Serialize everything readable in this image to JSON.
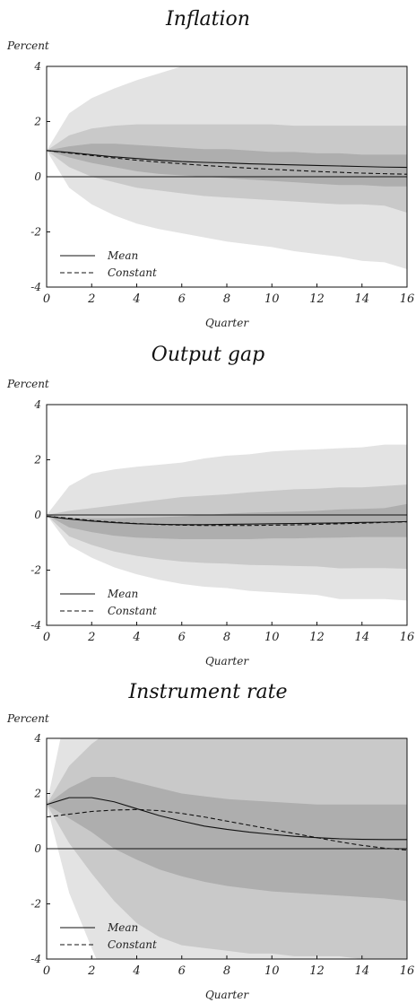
{
  "chart_data": [
    {
      "type": "area",
      "title": "Inflation",
      "ylabel": "Percent",
      "xlabel": "Quarter",
      "x": [
        0,
        1,
        2,
        3,
        4,
        5,
        6,
        7,
        8,
        9,
        10,
        11,
        12,
        13,
        14,
        15,
        16
      ],
      "xticks": [
        0,
        2,
        4,
        6,
        8,
        10,
        12,
        14,
        16
      ],
      "yticks": [
        4,
        2,
        0,
        -2,
        -4
      ],
      "xlim": [
        0,
        16
      ],
      "ylim": [
        -4,
        4
      ],
      "bands": [
        {
          "level": "outer",
          "color": "#e3e3e3",
          "upper": [
            0.95,
            2.3,
            2.85,
            3.2,
            3.5,
            3.75,
            4.0,
            4.0,
            4.0,
            4.0,
            4.0,
            4.0,
            4.0,
            4.0,
            4.0,
            4.0,
            4.0
          ],
          "lower": [
            0.95,
            -0.4,
            -1.0,
            -1.4,
            -1.7,
            -1.9,
            -2.05,
            -2.2,
            -2.35,
            -2.45,
            -2.55,
            -2.7,
            -2.8,
            -2.9,
            -3.05,
            -3.1,
            -3.35
          ]
        },
        {
          "level": "middle",
          "color": "#c9c9c9",
          "upper": [
            0.95,
            1.5,
            1.75,
            1.85,
            1.9,
            1.9,
            1.9,
            1.9,
            1.9,
            1.9,
            1.9,
            1.85,
            1.85,
            1.85,
            1.85,
            1.85,
            1.85
          ],
          "lower": [
            0.95,
            0.35,
            0.0,
            -0.2,
            -0.4,
            -0.5,
            -0.6,
            -0.7,
            -0.75,
            -0.8,
            -0.85,
            -0.9,
            -0.95,
            -1.0,
            -1.0,
            -1.05,
            -1.3
          ]
        },
        {
          "level": "inner",
          "color": "#aeaeae",
          "upper": [
            0.95,
            1.1,
            1.2,
            1.2,
            1.15,
            1.1,
            1.05,
            1.0,
            1.0,
            0.95,
            0.9,
            0.9,
            0.85,
            0.85,
            0.8,
            0.8,
            0.8
          ],
          "lower": [
            0.95,
            0.7,
            0.5,
            0.35,
            0.2,
            0.1,
            0.05,
            0.0,
            -0.05,
            -0.1,
            -0.15,
            -0.2,
            -0.25,
            -0.3,
            -0.3,
            -0.35,
            -0.35
          ]
        }
      ],
      "series": [
        {
          "name": "Mean",
          "style": "solid",
          "values": [
            0.95,
            0.88,
            0.8,
            0.72,
            0.66,
            0.6,
            0.55,
            0.52,
            0.5,
            0.47,
            0.45,
            0.43,
            0.41,
            0.39,
            0.37,
            0.35,
            0.34
          ]
        },
        {
          "name": "Constant",
          "style": "dashed",
          "values": [
            0.95,
            0.86,
            0.77,
            0.68,
            0.6,
            0.53,
            0.47,
            0.41,
            0.36,
            0.31,
            0.27,
            0.23,
            0.19,
            0.16,
            0.13,
            0.11,
            0.09
          ]
        }
      ],
      "legend": "bottom-left"
    },
    {
      "type": "area",
      "title": "Output gap",
      "ylabel": "Percent",
      "xlabel": "Quarter",
      "x": [
        0,
        1,
        2,
        3,
        4,
        5,
        6,
        7,
        8,
        9,
        10,
        11,
        12,
        13,
        14,
        15,
        16
      ],
      "xticks": [
        0,
        2,
        4,
        6,
        8,
        10,
        12,
        14,
        16
      ],
      "yticks": [
        4,
        2,
        0,
        -2,
        -4
      ],
      "xlim": [
        0,
        16
      ],
      "ylim": [
        -4,
        4
      ],
      "bands": [
        {
          "level": "outer",
          "color": "#e3e3e3",
          "upper": [
            0.0,
            1.05,
            1.5,
            1.65,
            1.75,
            1.82,
            1.9,
            2.05,
            2.15,
            2.2,
            2.3,
            2.35,
            2.38,
            2.42,
            2.45,
            2.55,
            2.55
          ],
          "lower": [
            0.0,
            -1.1,
            -1.55,
            -1.9,
            -2.15,
            -2.35,
            -2.5,
            -2.6,
            -2.65,
            -2.75,
            -2.8,
            -2.85,
            -2.9,
            -3.05,
            -3.05,
            -3.05,
            -3.1
          ]
        },
        {
          "level": "middle",
          "color": "#c9c9c9",
          "upper": [
            0.0,
            0.15,
            0.25,
            0.35,
            0.45,
            0.55,
            0.65,
            0.7,
            0.75,
            0.82,
            0.88,
            0.93,
            0.95,
            1.0,
            1.0,
            1.05,
            1.1
          ]
        },
        {
          "level": "inner",
          "color": "#aeaeae",
          "upper": [
            0.0,
            -0.1,
            -0.12,
            -0.12,
            -0.1,
            -0.08,
            -0.05,
            0.0,
            0.05,
            0.08,
            0.1,
            0.12,
            0.15,
            0.2,
            0.22,
            0.25,
            0.4
          ],
          "lower": [
            0.0,
            -0.45,
            -0.62,
            -0.75,
            -0.82,
            -0.85,
            -0.88,
            -0.88,
            -0.88,
            -0.88,
            -0.85,
            -0.85,
            -0.83,
            -0.82,
            -0.8,
            -0.8,
            -0.8
          ]
        }
      ],
      "series": [
        {
          "name": "Mean",
          "style": "solid",
          "values": [
            -0.05,
            -0.15,
            -0.22,
            -0.28,
            -0.32,
            -0.34,
            -0.35,
            -0.35,
            -0.34,
            -0.33,
            -0.32,
            -0.31,
            -0.3,
            -0.29,
            -0.27,
            -0.26,
            -0.24
          ]
        },
        {
          "name": "Constant",
          "style": "dashed",
          "values": [
            -0.05,
            -0.12,
            -0.2,
            -0.26,
            -0.31,
            -0.35,
            -0.37,
            -0.38,
            -0.38,
            -0.38,
            -0.37,
            -0.36,
            -0.34,
            -0.32,
            -0.3,
            -0.27,
            -0.25
          ]
        }
      ],
      "legend": "bottom-left"
    },
    {
      "type": "area",
      "title": "Instrument rate",
      "ylabel": "Percent",
      "xlabel": "Quarter",
      "x": [
        0,
        1,
        2,
        3,
        4,
        5,
        6,
        7,
        8,
        9,
        10,
        11,
        12,
        13,
        14,
        15,
        16
      ],
      "xticks": [
        0,
        2,
        4,
        6,
        8,
        10,
        12,
        14,
        16
      ],
      "yticks": [
        4,
        2,
        0,
        -2,
        -4
      ],
      "xlim": [
        0,
        16
      ],
      "ylim": [
        -4,
        4
      ],
      "bands": [
        {
          "level": "outer",
          "color": "#e3e3e3",
          "upper": [
            1.6,
            5.5,
            5.5,
            5.5,
            5.5,
            5.5,
            5.5,
            5.5,
            5.5,
            5.5,
            5.5,
            5.5,
            5.5,
            5.5,
            5.5,
            5.5,
            5.5
          ],
          "lower": [
            1.6,
            -1.6,
            -3.6,
            -5.5,
            -5.5,
            -5.5,
            -5.5,
            -5.5,
            -5.5,
            -5.5,
            -5.5,
            -5.5,
            -5.5,
            -5.5,
            -5.5,
            -5.5,
            -5.5
          ]
        },
        {
          "level": "middle",
          "color": "#c9c9c9",
          "upper": [
            1.6,
            3.0,
            3.8,
            4.4,
            4.6,
            4.7,
            4.9,
            5.0,
            5.0,
            5.0,
            4.9,
            4.8,
            4.5,
            4.1,
            4.1,
            4.1,
            4.1
          ],
          "lower": [
            1.6,
            0.2,
            -0.9,
            -1.9,
            -2.7,
            -3.2,
            -3.5,
            -3.6,
            -3.7,
            -3.8,
            -3.8,
            -3.9,
            -3.9,
            -3.9,
            -4.0,
            -4.1,
            -4.1
          ]
        },
        {
          "level": "inner",
          "color": "#aeaeae",
          "upper": [
            1.6,
            2.2,
            2.6,
            2.6,
            2.4,
            2.2,
            2.0,
            1.9,
            1.8,
            1.75,
            1.7,
            1.65,
            1.6,
            1.6,
            1.6,
            1.6,
            1.6
          ],
          "lower": [
            1.6,
            1.1,
            0.6,
            0.0,
            -0.4,
            -0.75,
            -1.0,
            -1.2,
            -1.35,
            -1.45,
            -1.55,
            -1.6,
            -1.65,
            -1.7,
            -1.75,
            -1.8,
            -1.9
          ]
        }
      ],
      "series": [
        {
          "name": "Mean",
          "style": "solid",
          "values": [
            1.6,
            1.85,
            1.85,
            1.7,
            1.45,
            1.2,
            1.0,
            0.82,
            0.7,
            0.6,
            0.52,
            0.45,
            0.4,
            0.36,
            0.34,
            0.33,
            0.33
          ]
        },
        {
          "name": "Constant",
          "style": "dashed",
          "values": [
            1.15,
            1.25,
            1.35,
            1.4,
            1.42,
            1.38,
            1.28,
            1.15,
            1.0,
            0.85,
            0.7,
            0.55,
            0.4,
            0.25,
            0.12,
            0.02,
            -0.05
          ]
        }
      ],
      "legend": "bottom-left"
    }
  ]
}
